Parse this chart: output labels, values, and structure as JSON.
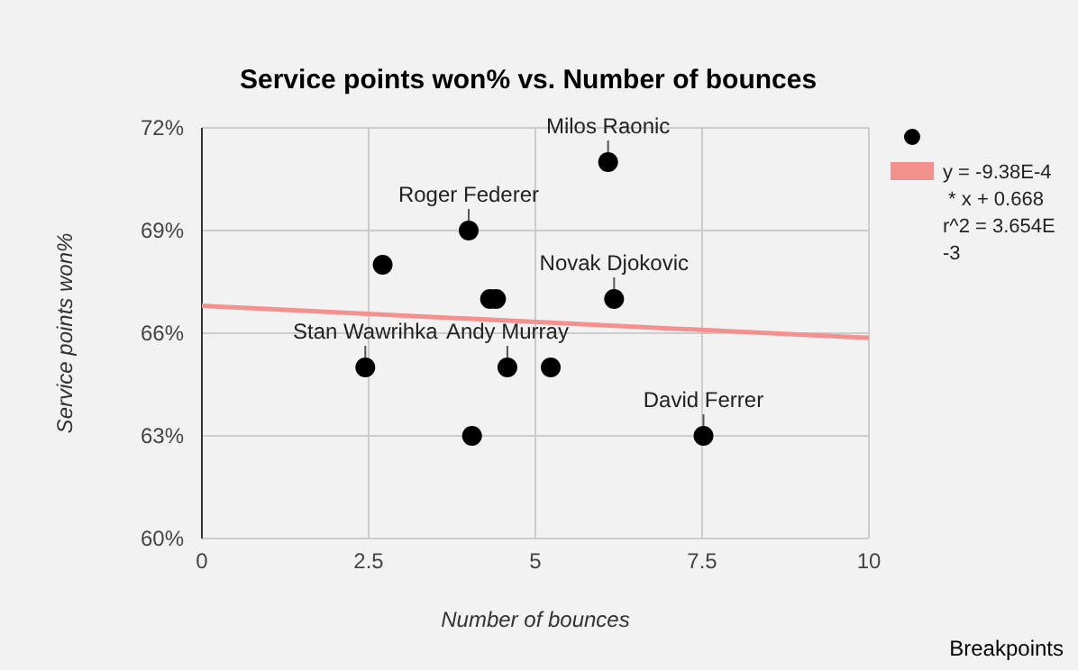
{
  "chart_data": {
    "type": "scatter",
    "title": "Service points won% vs. Number of bounces",
    "xlabel": "Number of bounces",
    "ylabel": "Service points won%",
    "xlim": [
      0,
      10
    ],
    "xticks": [
      0,
      2.5,
      5,
      7.5,
      10
    ],
    "ylim": [
      60,
      72
    ],
    "yticks": [
      {
        "value": 60,
        "label": "60%"
      },
      {
        "value": 63,
        "label": "63%"
      },
      {
        "value": 66,
        "label": "66%"
      },
      {
        "value": 69,
        "label": "69%"
      },
      {
        "value": 72,
        "label": "72%"
      }
    ],
    "grid": true,
    "legend": "right",
    "series": [
      {
        "marker": "circle",
        "color": "#000000",
        "x": [
          6.09,
          4.0,
          2.71,
          4.32,
          4.41,
          6.18,
          2.45,
          4.58,
          5.23,
          4.05,
          7.52
        ],
        "values": [
          71,
          69,
          68,
          67,
          67,
          67,
          65,
          65,
          65,
          63,
          63
        ]
      },
      {
        "type": "line",
        "name": "y = -9.38E-4 * x + 0.668\nr^2 = 3.654E-3",
        "color": "#f4908e",
        "x": [
          0,
          10
        ],
        "values": [
          66.8,
          65.86
        ]
      }
    ],
    "annotations": [
      {
        "text": "Milos Raonic",
        "x": 6.09,
        "y": 71
      },
      {
        "text": "Roger Federer",
        "x": 4.0,
        "y": 69
      },
      {
        "text": "Novak Djokovic",
        "x": 6.18,
        "y": 67
      },
      {
        "text": "Stan Wawrihka",
        "x": 2.45,
        "y": 65
      },
      {
        "text": "Andy Murray",
        "x": 4.58,
        "y": 65
      },
      {
        "text": "David Ferrer",
        "x": 7.52,
        "y": 63
      },
      "Breakpoints"
    ]
  }
}
